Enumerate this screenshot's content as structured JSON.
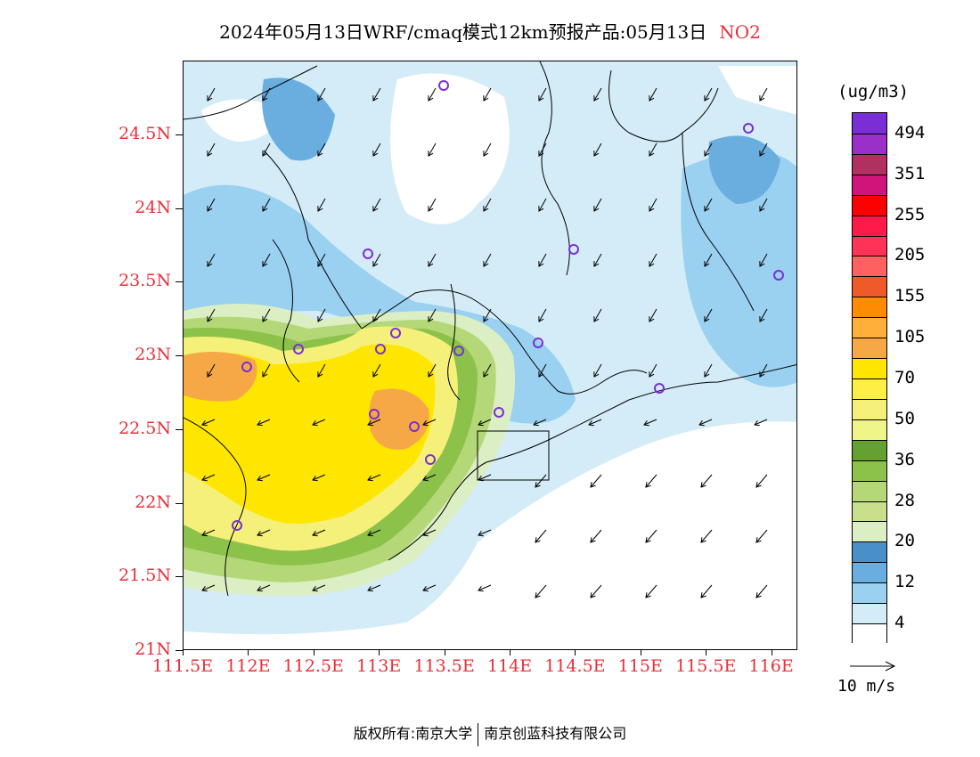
{
  "title": {
    "text": "2024年05月13日WRF/cmaq模式12km预报产品:05月13日",
    "pollutant": "NO2"
  },
  "axes": {
    "lat_labels": [
      "24.5N",
      "24N",
      "23.5N",
      "23N",
      "22.5N",
      "22N",
      "21.5N",
      "21N"
    ],
    "lon_labels": [
      "111.5E",
      "112E",
      "112.5E",
      "113E",
      "113.5E",
      "114E",
      "114.5E",
      "115E",
      "115.5E",
      "116E"
    ],
    "lat_range": [
      21,
      25
    ],
    "lon_range": [
      111.5,
      116.2
    ]
  },
  "legend": {
    "unit": "(ug/m3)",
    "labels": [
      "494",
      "351",
      "255",
      "205",
      "155",
      "105",
      "70",
      "50",
      "36",
      "28",
      "20",
      "12",
      "4"
    ],
    "colors": [
      "#7a2fd6",
      "#9b30c8",
      "#b03060",
      "#d0157a",
      "#ff0000",
      "#ff1a4a",
      "#ff3355",
      "#ff6060",
      "#ee5a28",
      "#ff8c00",
      "#ffb03a",
      "#f5a845",
      "#ffe600",
      "#ffee44",
      "#f5f07a",
      "#f0f58a",
      "#64a032",
      "#8cc24a",
      "#b4d878",
      "#c8e08c",
      "#dceec4",
      "#4a90c8",
      "#6aaee0",
      "#9ad0f0",
      "#d4ecf8",
      "#ffffff"
    ]
  },
  "wind": {
    "reference_label": "10 m/s"
  },
  "hotspot_color": "#7a2fd6",
  "copyright": {
    "prefix": "版权所有:",
    "org1": "南京大学",
    "org2": "南京创蓝科技有限公司"
  }
}
